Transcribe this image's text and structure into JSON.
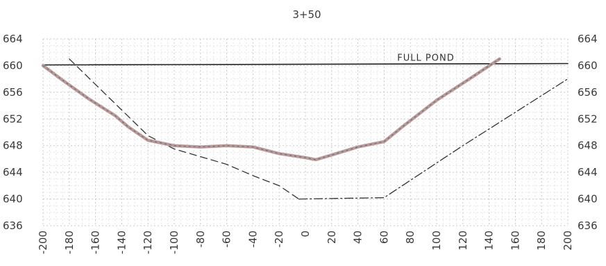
{
  "chart_data": {
    "type": "line",
    "title": "3+50",
    "xlabel": "",
    "ylabel": "",
    "xlim": [
      -200,
      200
    ],
    "ylim": [
      636,
      664
    ],
    "x_ticks": [
      -200,
      -180,
      -160,
      -140,
      -120,
      -100,
      -80,
      -60,
      -40,
      -20,
      0,
      20,
      40,
      60,
      80,
      100,
      120,
      140,
      160,
      180,
      200
    ],
    "x_tick_labels": [
      "-200",
      "-180",
      "-160",
      "-140",
      "-120",
      "-100",
      "-80",
      "-60",
      "-40",
      "-20",
      "0",
      "20",
      "40",
      "60",
      "80",
      "100",
      "120",
      "140",
      "160",
      "180",
      "200"
    ],
    "y_ticks": [
      636,
      640,
      644,
      648,
      652,
      656,
      660,
      664
    ],
    "y_tick_labels": [
      "636",
      "640",
      "644",
      "648",
      "652",
      "656",
      "660",
      "664"
    ],
    "grid": true,
    "annotations": [
      {
        "text": "FULL POND",
        "x": 70,
        "y": 660.2
      }
    ],
    "series": [
      {
        "style": "solid-thick",
        "color": "#b89a9a",
        "x": [
          -200,
          -185,
          -165,
          -145,
          -135,
          -120,
          -100,
          -80,
          -60,
          -40,
          -20,
          0,
          8,
          20,
          40,
          60,
          75,
          100,
          125,
          148
        ],
        "y": [
          660,
          657.8,
          655,
          652.5,
          650.8,
          648.8,
          648,
          647.8,
          648,
          647.8,
          646.8,
          646.2,
          645.9,
          646.6,
          647.8,
          648.6,
          651,
          654.8,
          658,
          661
        ]
      },
      {
        "style": "dash",
        "color": "#333333",
        "x": [
          -180,
          -120,
          -100,
          -60,
          -40,
          -20,
          -5
        ],
        "y": [
          661,
          649.5,
          647.5,
          645.2,
          643.5,
          642,
          640
        ]
      },
      {
        "style": "dash-dot",
        "color": "#333333",
        "x": [
          -5,
          60,
          120,
          200
        ],
        "y": [
          640,
          640.2,
          648,
          658
        ]
      },
      {
        "style": "full-pond",
        "color": "#222222",
        "x": [
          -200,
          200
        ],
        "y": [
          660.1,
          660.3
        ]
      }
    ]
  }
}
